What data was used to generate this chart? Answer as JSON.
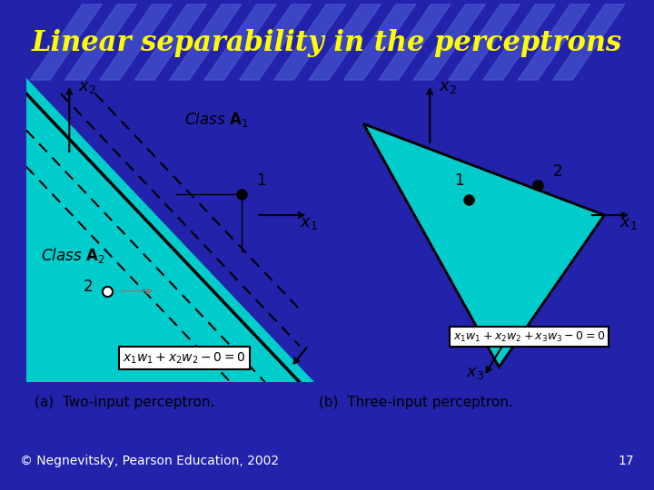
{
  "title": "Linear separability in the perceptrons",
  "title_color": "#FFFF00",
  "title_bg_color": "#4444CC",
  "slide_bg_color": "#2222AA",
  "content_bg": "#ffffff",
  "cyan_color": "#00CCCC",
  "footer_text": "© Negnevitsky, Pearson Education, 2002",
  "footer_number": "17",
  "caption_a": "(a)  Two-input perceptron.",
  "caption_b": "(b)  Three-input perceptron.",
  "eq_a": "x₁w₁ + x₂w₂ – 0 = 0",
  "eq_b": "x₁w₁ + x₂w₂ + x₃w₃ – 0 = 0"
}
